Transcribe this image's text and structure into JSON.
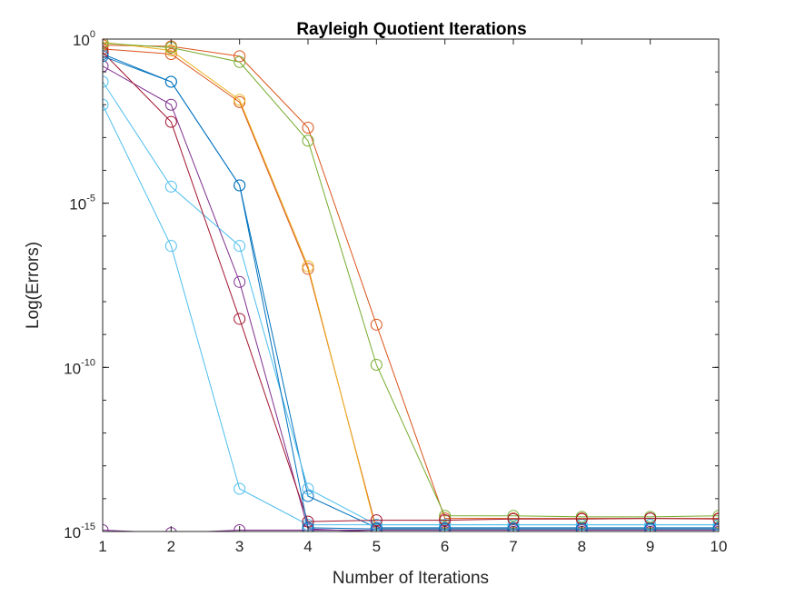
{
  "chart_data": {
    "type": "line",
    "title": "Rayleigh Quotient Iterations",
    "xlabel": "Number of Iterations",
    "ylabel": "Log(Errors)",
    "xlim": [
      1,
      10
    ],
    "ylim": [
      1e-15,
      1
    ],
    "yscale": "log",
    "grid": false,
    "legend": "none",
    "x": [
      1,
      2,
      3,
      4,
      5,
      6,
      7,
      8,
      9,
      10
    ],
    "x_tick_labels": [
      "1",
      "2",
      "3",
      "4",
      "5",
      "6",
      "7",
      "8",
      "9",
      "10"
    ],
    "y_ticks": [
      {
        "value": 1,
        "base": "10",
        "exp": "0"
      },
      {
        "value": 1e-05,
        "base": "10",
        "exp": "-5"
      },
      {
        "value": 1e-10,
        "base": "10",
        "exp": "-10"
      },
      {
        "value": 1e-15,
        "base": "10",
        "exp": "-15"
      }
    ],
    "marker": "circle",
    "series": [
      {
        "color": "#0072BD",
        "values": [
          0.35,
          0.05,
          3.5e-05,
          1.2e-14,
          1.3e-15,
          1.3e-15,
          1.3e-15,
          1.3e-15,
          1.3e-15,
          1.3e-15
        ]
      },
      {
        "color": "#D95319",
        "values": [
          0.5,
          0.35,
          0.012,
          1e-07,
          1.2e-15,
          1.2e-15,
          1.2e-15,
          1.2e-15,
          1.2e-15,
          1.2e-15
        ]
      },
      {
        "color": "#D95319",
        "values": [
          0.65,
          0.6,
          0.3,
          0.002,
          2e-09,
          2.5e-15,
          2.5e-15,
          2.5e-15,
          2.5e-15,
          2.5e-15
        ]
      },
      {
        "color": "#EDB120",
        "values": [
          0.8,
          0.45,
          0.014,
          1.2e-07,
          1e-15,
          9e-16,
          9e-16,
          9e-16,
          9e-16,
          9e-16
        ]
      },
      {
        "color": "#7E2F8E",
        "values": [
          0.15,
          0.01,
          4e-08,
          1.2e-15,
          9.8e-16,
          9.8e-16,
          9.8e-16,
          9.8e-16,
          9.8e-16,
          9.8e-16
        ]
      },
      {
        "color": "#7E2F8E",
        "values": [
          1.1e-15,
          9e-16,
          1.1e-15,
          1.1e-15,
          1.1e-15,
          1.1e-15,
          1.1e-15,
          1.1e-15,
          1.1e-15,
          1.1e-15
        ]
      },
      {
        "color": "#77AC30",
        "values": [
          0.75,
          0.55,
          0.2,
          0.0008,
          1.2e-10,
          3e-15,
          3e-15,
          2.8e-15,
          2.8e-15,
          3e-15
        ]
      },
      {
        "color": "#4DBEEE",
        "values": [
          0.05,
          3.2e-05,
          5e-07,
          2e-14,
          1.6e-15,
          1.6e-15,
          1.6e-15,
          1.6e-15,
          1.6e-15,
          1.6e-15
        ]
      },
      {
        "color": "#4DBEEE",
        "values": [
          0.01,
          5e-07,
          2e-14,
          1.6e-15,
          1.6e-15,
          1.6e-15,
          1.6e-15,
          1.6e-15,
          1.6e-15,
          1.6e-15
        ]
      },
      {
        "color": "#A2142F",
        "values": [
          0.4,
          0.003,
          3e-09,
          2e-15,
          2.2e-15,
          2.2e-15,
          2.4e-15,
          2.4e-15,
          2.5e-15,
          2.4e-15
        ]
      },
      {
        "color": "#0072BD",
        "values": [
          0.3,
          0.05,
          3.5e-05,
          1.3e-15,
          1.2e-15,
          1.2e-15,
          1.2e-15,
          1.2e-15,
          1.2e-15,
          1.2e-15
        ]
      }
    ]
  }
}
